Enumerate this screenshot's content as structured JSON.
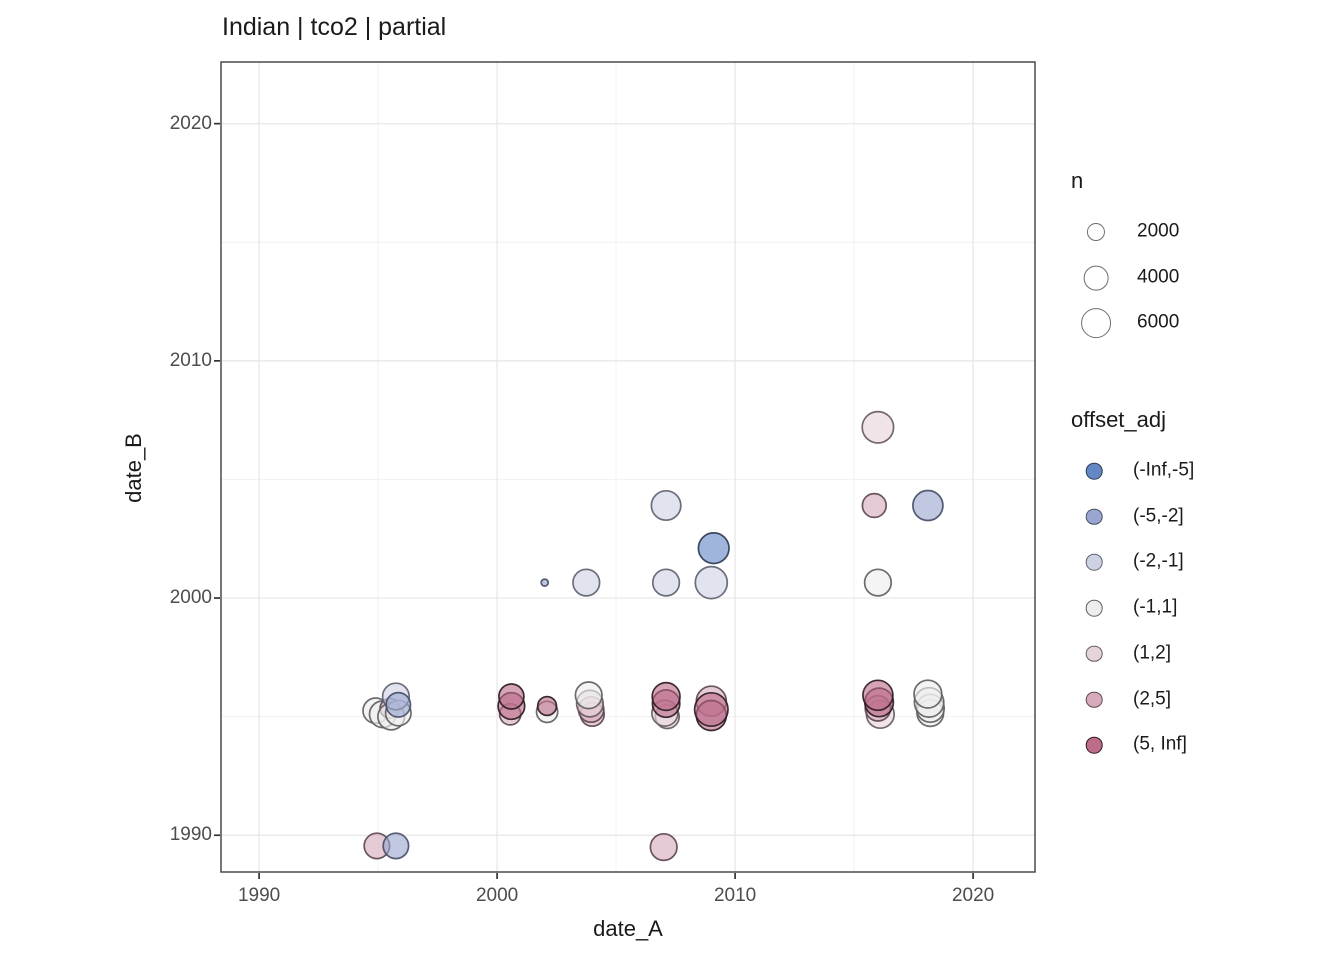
{
  "title": "Indian | tco2 | partial",
  "axes": {
    "x_label": "date_A",
    "y_label": "date_B"
  },
  "legend_n": {
    "title": "n",
    "entries": [
      {
        "label": "2000",
        "n": 2000
      },
      {
        "label": "4000",
        "n": 4000
      },
      {
        "label": "6000",
        "n": 6000
      }
    ]
  },
  "legend_offset": {
    "title": "offset_adj",
    "entries": [
      {
        "label": "(-Inf,-5]",
        "bin": "b1"
      },
      {
        "label": "(-5,-2]",
        "bin": "b2"
      },
      {
        "label": "(-2,-1]",
        "bin": "b3"
      },
      {
        "label": "(-1,1]",
        "bin": "b4"
      },
      {
        "label": "(1,2]",
        "bin": "b5"
      },
      {
        "label": "(2,5]",
        "bin": "b6"
      },
      {
        "label": "(5, Inf]",
        "bin": "b7"
      }
    ]
  },
  "bins": {
    "b1": {
      "range": "(-Inf,-5]",
      "fill": "#6488c5",
      "stroke": "#2f3c52"
    },
    "b2": {
      "range": "(-5,-2]",
      "fill": "#99a6d1",
      "stroke": "#474f66"
    },
    "b3": {
      "range": "(-2,-1]",
      "fill": "#ced3e3",
      "stroke": "#5f6270"
    },
    "b4": {
      "range": "(-1,1]",
      "fill": "#ededed",
      "stroke": "#5f5f5f"
    },
    "b5": {
      "range": "(1,2]",
      "fill": "#e6d4db",
      "stroke": "#665c60"
    },
    "b6": {
      "range": "(2,5]",
      "fill": "#d7abbd",
      "stroke": "#5c4852"
    },
    "b7": {
      "range": "(5, Inf]",
      "fill": "#bd6c8a",
      "stroke": "#2e1c24"
    }
  },
  "chart_data": {
    "type": "scatter",
    "title": "Indian | tco2 | partial",
    "xlabel": "date_A",
    "ylabel": "date_B",
    "xlim": [
      1988.4,
      2022.6
    ],
    "ylim": [
      1988.45,
      2022.6
    ],
    "x_major": [
      1990,
      2000,
      2010,
      2020
    ],
    "x_minor": [
      1995,
      2005,
      2015
    ],
    "y_major": [
      1990,
      2000,
      2010,
      2020
    ],
    "y_minor": [
      1995,
      2005,
      2015
    ],
    "grid": true,
    "legend_position": "right",
    "size_scale": {
      "rule": "radius_px = 0.18 * sqrt(n)",
      "legend_breaks": [
        2000,
        4000,
        6000
      ]
    },
    "points": [
      {
        "x": 1994.9,
        "y": 1995.25,
        "bin": "b4",
        "n": 5000
      },
      {
        "x": 1995.2,
        "y": 1995.1,
        "bin": "b4",
        "n": 5500
      },
      {
        "x": 1995.5,
        "y": 1995.35,
        "bin": "b6",
        "n": 3000
      },
      {
        "x": 1995.55,
        "y": 1995.0,
        "bin": "b4",
        "n": 5500
      },
      {
        "x": 1995.85,
        "y": 1995.15,
        "bin": "b4",
        "n": 5000
      },
      {
        "x": 1995.75,
        "y": 1995.85,
        "bin": "b3",
        "n": 5500
      },
      {
        "x": 1995.85,
        "y": 1995.5,
        "bin": "b2",
        "n": 4600
      },
      {
        "x": 1994.95,
        "y": 1989.55,
        "bin": "b6",
        "n": 5000
      },
      {
        "x": 1995.75,
        "y": 1989.55,
        "bin": "b2",
        "n": 5000
      },
      {
        "x": 2000.55,
        "y": 1995.1,
        "bin": "b6",
        "n": 3500
      },
      {
        "x": 2000.6,
        "y": 1995.45,
        "bin": "b7",
        "n": 5500
      },
      {
        "x": 2000.6,
        "y": 1995.85,
        "bin": "b7",
        "n": 4800
      },
      {
        "x": 2002.1,
        "y": 1995.2,
        "bin": "b4",
        "n": 3500
      },
      {
        "x": 2002.1,
        "y": 1995.45,
        "bin": "b7",
        "n": 2700
      },
      {
        "x": 2002.0,
        "y": 2000.65,
        "bin": "b2",
        "n": 380
      },
      {
        "x": 2003.75,
        "y": 2000.65,
        "bin": "b3",
        "n": 5500
      },
      {
        "x": 2004.0,
        "y": 1995.1,
        "bin": "b6",
        "n": 4400
      },
      {
        "x": 2003.95,
        "y": 1995.3,
        "bin": "b6",
        "n": 5000
      },
      {
        "x": 2003.9,
        "y": 1995.55,
        "bin": "b5",
        "n": 5500
      },
      {
        "x": 2003.85,
        "y": 1995.9,
        "bin": "b4",
        "n": 5500
      },
      {
        "x": 2007.1,
        "y": 2003.9,
        "bin": "b3",
        "n": 6700
      },
      {
        "x": 2007.1,
        "y": 2000.65,
        "bin": "b3",
        "n": 5500
      },
      {
        "x": 2007.15,
        "y": 1995.0,
        "bin": "b5",
        "n": 4400
      },
      {
        "x": 2007.05,
        "y": 1995.15,
        "bin": "b5",
        "n": 5200
      },
      {
        "x": 2007.1,
        "y": 1995.55,
        "bin": "b7",
        "n": 5800
      },
      {
        "x": 2007.1,
        "y": 1995.85,
        "bin": "b7",
        "n": 6000
      },
      {
        "x": 2007.0,
        "y": 1989.5,
        "bin": "b6",
        "n": 5500
      },
      {
        "x": 2009.1,
        "y": 2002.1,
        "bin": "b1",
        "n": 7200
      },
      {
        "x": 2009.0,
        "y": 2000.65,
        "bin": "b3",
        "n": 7900
      },
      {
        "x": 2009.0,
        "y": 1995.65,
        "bin": "b6",
        "n": 6900
      },
      {
        "x": 2009.0,
        "y": 1995.05,
        "bin": "b7",
        "n": 6900
      },
      {
        "x": 2009.0,
        "y": 1995.3,
        "bin": "b7",
        "n": 8600
      },
      {
        "x": 2016.0,
        "y": 2007.2,
        "bin": "b5",
        "n": 7600
      },
      {
        "x": 2015.85,
        "y": 2003.9,
        "bin": "b6",
        "n": 4400
      },
      {
        "x": 2016.0,
        "y": 2000.65,
        "bin": "b4",
        "n": 5500
      },
      {
        "x": 2016.1,
        "y": 1995.1,
        "bin": "b5",
        "n": 6000
      },
      {
        "x": 2016.0,
        "y": 1995.35,
        "bin": "b6",
        "n": 5000
      },
      {
        "x": 2016.05,
        "y": 1995.6,
        "bin": "b7",
        "n": 6300
      },
      {
        "x": 2016.0,
        "y": 1995.9,
        "bin": "b7",
        "n": 6900
      },
      {
        "x": 2018.1,
        "y": 2003.9,
        "bin": "b2",
        "n": 6900
      },
      {
        "x": 2018.2,
        "y": 1995.15,
        "bin": "b4",
        "n": 5500
      },
      {
        "x": 2018.2,
        "y": 1995.35,
        "bin": "b4",
        "n": 6000
      },
      {
        "x": 2018.15,
        "y": 1995.6,
        "bin": "b4",
        "n": 6700
      },
      {
        "x": 2018.1,
        "y": 1995.95,
        "bin": "b4",
        "n": 6000
      }
    ]
  }
}
